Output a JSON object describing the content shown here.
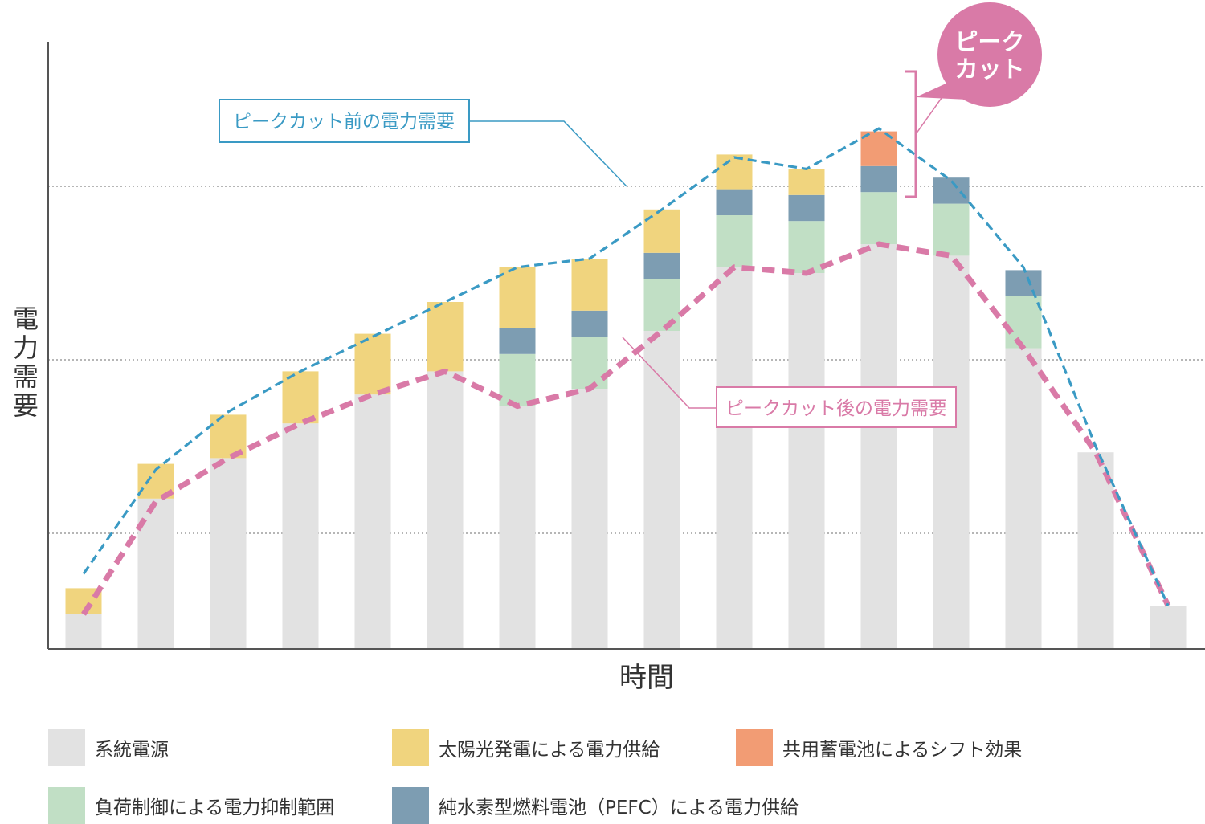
{
  "chart_data": {
    "type": "bar",
    "stacked": true,
    "xlabel": "時間",
    "ylabel": "電力需要",
    "ylim": [
      0,
      100
    ],
    "grid": [
      20,
      50,
      80
    ],
    "categories_count": 16,
    "series": [
      {
        "name": "系統電源",
        "color": "#e2e2e2",
        "values": [
          6,
          26,
          33,
          39,
          44,
          48,
          42,
          45,
          55,
          66,
          65,
          70,
          68,
          52,
          34,
          7.5
        ]
      },
      {
        "name": "負荷制御による電力抑制範囲",
        "color": "#c1dfc5",
        "values": [
          0,
          0,
          0,
          0,
          0,
          0,
          9,
          9,
          9,
          9,
          9,
          9,
          9,
          9,
          0,
          0
        ]
      },
      {
        "name": "純水素型燃料電池（PEFC）による電力供給",
        "color": "#7d9db2",
        "values": [
          0,
          0,
          0,
          0,
          0,
          0,
          4.5,
          4.5,
          4.5,
          4.5,
          4.5,
          4.5,
          4.5,
          4.5,
          0,
          0
        ]
      },
      {
        "name": "太陽光発電による電力供給",
        "color": "#f0d47e",
        "values": [
          4.5,
          6,
          7.5,
          9,
          10.5,
          12,
          10.5,
          9,
          7.5,
          6,
          4.5,
          0,
          0,
          0,
          0,
          0
        ]
      },
      {
        "name": "共用蓄電池によるシフト効果",
        "color": "#f29c74",
        "values": [
          0,
          0,
          0,
          0,
          0,
          0,
          0,
          0,
          0,
          0,
          0,
          6,
          0,
          0,
          0,
          0
        ]
      }
    ],
    "lines": [
      {
        "name": "ピークカット前の電力需要",
        "color": "#3a9ac4",
        "values": [
          13,
          31,
          41,
          48,
          54,
          60,
          66,
          67.5,
          76,
          85,
          83,
          90,
          81,
          66,
          35,
          7.5
        ]
      },
      {
        "name": "ピークカット後の電力需要",
        "color": "#d97aa7",
        "values": [
          6,
          25.5,
          33,
          39,
          44,
          48,
          42,
          45,
          55,
          66,
          65,
          70,
          68,
          52,
          34,
          7.5
        ]
      }
    ],
    "annotations": {
      "before_label": "ピークカット前の電力需要",
      "after_label": "ピークカット後の電力需要",
      "peak_cut": [
        "ピーク",
        "カット"
      ]
    }
  },
  "legend": [
    {
      "label": "系統電源",
      "color": "#e2e2e2"
    },
    {
      "label": "太陽光発電による電力供給",
      "color": "#f0d47e"
    },
    {
      "label": "共用蓄電池によるシフト効果",
      "color": "#f29c74"
    },
    {
      "label": "負荷制御による電力抑制範囲",
      "color": "#c1dfc5"
    },
    {
      "label": "純水素型燃料電池（PEFC）による電力供給",
      "color": "#7d9db2"
    }
  ]
}
